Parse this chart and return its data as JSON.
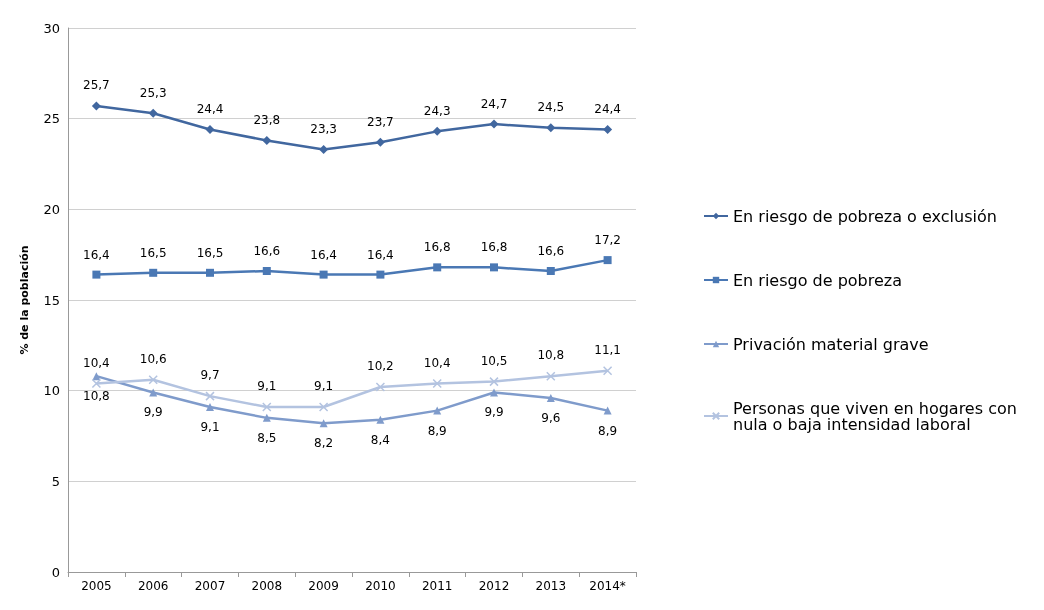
{
  "chart_data": {
    "type": "line",
    "ylabel": "% de la población",
    "categories": [
      "2005",
      "2006",
      "2007",
      "2008",
      "2009",
      "2010",
      "2011",
      "2012",
      "2013",
      "2014*"
    ],
    "series": [
      {
        "name": "En riesgo de pobreza o exclusión",
        "color": "#41679f",
        "marker": "diamond",
        "values": [
          25.7,
          25.3,
          24.4,
          23.8,
          23.3,
          23.7,
          24.3,
          24.7,
          24.5,
          24.4
        ],
        "value_labels": [
          "25,7",
          "25,3",
          "24,4",
          "23,8",
          "23,3",
          "23,7",
          "24,3",
          "24,7",
          "24,5",
          "24,4"
        ]
      },
      {
        "name": "En riesgo de pobreza",
        "color": "#4a78b4",
        "marker": "square",
        "values": [
          16.4,
          16.5,
          16.5,
          16.6,
          16.4,
          16.4,
          16.8,
          16.8,
          16.6,
          17.2
        ],
        "value_labels": [
          "16,4",
          "16,5",
          "16,5",
          "16,6",
          "16,4",
          "16,4",
          "16,8",
          "16,8",
          "16,6",
          "17,2"
        ]
      },
      {
        "name": "Privación material grave",
        "color": "#7f9bcb",
        "marker": "triangle",
        "values": [
          10.8,
          9.9,
          9.1,
          8.5,
          8.2,
          8.4,
          8.9,
          9.9,
          9.6,
          8.9
        ],
        "value_labels": [
          "10,8",
          "9,9",
          "9,1",
          "8,5",
          "8,2",
          "8,4",
          "8,9",
          "9,9",
          "9,6",
          "8,9"
        ]
      },
      {
        "name": "Personas que viven en hogares con nula o baja intensidad laboral",
        "color": "#b3c3e0",
        "marker": "cross",
        "values": [
          10.4,
          10.6,
          9.7,
          9.1,
          9.1,
          10.2,
          10.4,
          10.5,
          10.8,
          11.1
        ],
        "value_labels": [
          "10,4",
          "10,6",
          "9,7",
          "9,1",
          "9,1",
          "10,2",
          "10,4",
          "10,5",
          "10,8",
          "11,1"
        ]
      }
    ],
    "ylim": [
      0,
      30
    ],
    "yticks": [
      0,
      5,
      10,
      15,
      20,
      25,
      30
    ],
    "grid": "y",
    "legend": "right"
  }
}
